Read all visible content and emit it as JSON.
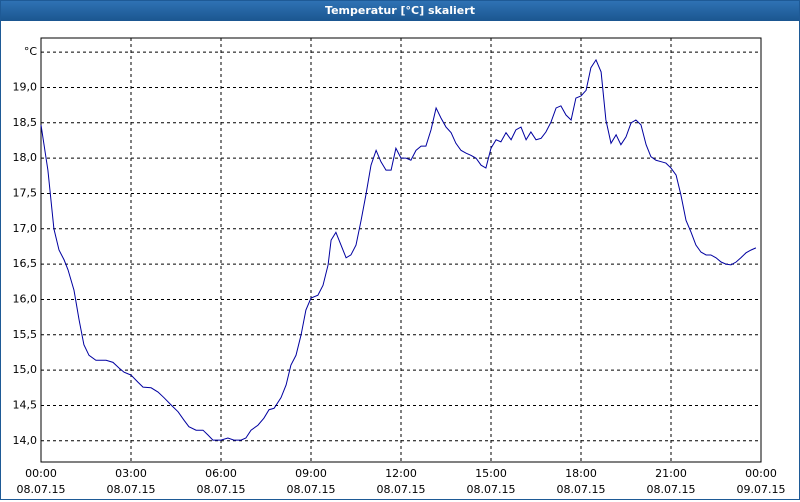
{
  "chart_data": {
    "type": "line",
    "title": "Temperatur [°C] skaliert",
    "xlim": [
      0,
      24
    ],
    "ylim": [
      13.7,
      19.7
    ],
    "xticks": [
      {
        "value": 0,
        "label": "00:00"
      },
      {
        "value": 3,
        "label": "03:00"
      },
      {
        "value": 6,
        "label": "06:00"
      },
      {
        "value": 9,
        "label": "09:00"
      },
      {
        "value": 12,
        "label": "12:00"
      },
      {
        "value": 15,
        "label": "15:00"
      },
      {
        "value": 18,
        "label": "18:00"
      },
      {
        "value": 21,
        "label": "21:00"
      },
      {
        "value": 24,
        "label": "00:00"
      }
    ],
    "xtick_dates": [
      "08.07.15",
      "08.07.15",
      "08.07.15",
      "08.07.15",
      "08.07.15",
      "08.07.15",
      "08.07.15",
      "08.07.15",
      "09.07.15"
    ],
    "yticks": [
      {
        "value": 14.0,
        "label": "14,0"
      },
      {
        "value": 14.5,
        "label": "14,5"
      },
      {
        "value": 15.0,
        "label": "15,0"
      },
      {
        "value": 15.5,
        "label": "15,5"
      },
      {
        "value": 16.0,
        "label": "16,0"
      },
      {
        "value": 16.5,
        "label": "16,5"
      },
      {
        "value": 17.0,
        "label": "17,0"
      },
      {
        "value": 17.5,
        "label": "17,5"
      },
      {
        "value": 18.0,
        "label": "18,0"
      },
      {
        "value": 18.5,
        "label": "18,5"
      },
      {
        "value": 19.0,
        "label": "19,0"
      },
      {
        "value": 19.5,
        "label": "°C"
      }
    ],
    "grid": true,
    "series": [
      {
        "color": "#0000a0",
        "x": [
          0,
          0.23,
          0.43,
          0.6,
          0.77,
          0.9,
          1.1,
          1.27,
          1.43,
          1.6,
          1.83,
          2.17,
          2.4,
          2.6,
          2.77,
          3,
          3.23,
          3.4,
          3.67,
          3.9,
          4.1,
          4.33,
          4.57,
          4.77,
          4.93,
          5.17,
          5.4,
          5.57,
          5.73,
          6,
          6.23,
          6.43,
          6.67,
          6.83,
          7,
          7.23,
          7.43,
          7.6,
          7.77,
          8,
          8.17,
          8.33,
          8.5,
          8.67,
          8.83,
          9,
          9.23,
          9.4,
          9.57,
          9.67,
          9.83,
          10,
          10.17,
          10.33,
          10.5,
          10.67,
          10.83,
          11,
          11.17,
          11.33,
          11.5,
          11.67,
          11.83,
          12,
          12.17,
          12.33,
          12.5,
          12.67,
          12.83,
          13,
          13.17,
          13.33,
          13.5,
          13.67,
          13.83,
          14,
          14.17,
          14.33,
          14.5,
          14.67,
          14.83,
          15,
          15.17,
          15.33,
          15.5,
          15.67,
          15.83,
          16,
          16.17,
          16.33,
          16.5,
          16.67,
          16.83,
          17,
          17.17,
          17.33,
          17.5,
          17.67,
          17.83,
          18,
          18.17,
          18.33,
          18.5,
          18.67,
          18.83,
          19,
          19.17,
          19.33,
          19.5,
          19.67,
          19.83,
          20,
          20.17,
          20.33,
          20.5,
          20.67,
          20.83,
          21,
          21.17,
          21.33,
          21.5,
          21.67,
          21.83,
          22,
          22.17,
          22.33,
          22.5,
          22.67,
          22.83,
          23,
          23.17,
          23.33,
          23.5,
          23.67,
          23.83
        ],
        "values": [
          18.47,
          17.83,
          17.0,
          16.7,
          16.56,
          16.42,
          16.13,
          15.71,
          15.36,
          15.21,
          15.14,
          15.14,
          15.11,
          15.03,
          14.97,
          14.93,
          14.83,
          14.76,
          14.75,
          14.69,
          14.61,
          14.51,
          14.41,
          14.29,
          14.2,
          14.15,
          14.15,
          14.08,
          14.01,
          14.01,
          14.04,
          14.01,
          14.01,
          14.04,
          14.15,
          14.22,
          14.32,
          14.44,
          14.46,
          14.61,
          14.79,
          15.07,
          15.21,
          15.5,
          15.85,
          16.02,
          16.06,
          16.2,
          16.49,
          16.84,
          16.95,
          16.77,
          16.59,
          16.63,
          16.77,
          17.12,
          17.48,
          17.9,
          18.11,
          17.95,
          17.83,
          17.83,
          18.14,
          18.0,
          18.0,
          17.97,
          18.11,
          18.17,
          18.17,
          18.4,
          18.71,
          18.57,
          18.44,
          18.36,
          18.21,
          18.11,
          18.07,
          18.04,
          18.0,
          17.9,
          17.86,
          18.14,
          18.26,
          18.23,
          18.36,
          18.26,
          18.4,
          18.44,
          18.26,
          18.37,
          18.26,
          18.28,
          18.37,
          18.51,
          18.71,
          18.74,
          18.61,
          18.54,
          18.85,
          18.88,
          18.96,
          19.28,
          19.39,
          19.22,
          18.54,
          18.21,
          18.33,
          18.19,
          18.3,
          18.5,
          18.54,
          18.47,
          18.19,
          18.02,
          17.97,
          17.95,
          17.93,
          17.86,
          17.76,
          17.48,
          17.12,
          16.95,
          16.77,
          16.67,
          16.63,
          16.63,
          16.59,
          16.53,
          16.5,
          16.49,
          16.53,
          16.59,
          16.66,
          16.7,
          16.73
        ]
      }
    ]
  }
}
